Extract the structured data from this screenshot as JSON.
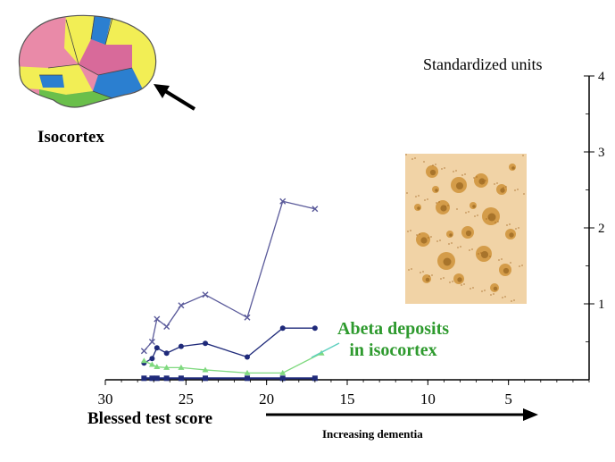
{
  "figure": {
    "region_label": "Isocortex",
    "arrow_caption": "Increasing dementia",
    "annotation": [
      "Abeta deposits",
      "in isocortex"
    ],
    "colors": {
      "annotation": "#2e9a2e",
      "series_upper": "#5a5a9a",
      "series_middle": "#1f2a7a",
      "series_green": "#7fd97f",
      "series_bottom": "#1f2a7a",
      "micrograph_bg": "#f1d3a6",
      "plaque": "#c98a2a"
    },
    "brain_map_icon": "brain-lateral-view-icon",
    "micrograph_icon": "amyloid-plaque-micrograph-icon"
  },
  "chart_data": {
    "type": "line",
    "xlabel": "Blessed test score",
    "ylabel": "Standardized units",
    "x_ticks": [
      30,
      25,
      20,
      15,
      10,
      5
    ],
    "y_ticks": [
      1,
      2,
      3,
      4
    ],
    "xlim": [
      30,
      0
    ],
    "ylim": [
      0,
      4
    ],
    "x_reversed": true,
    "grid": false,
    "series": [
      {
        "marker": "x",
        "color": "#5a5a9a",
        "x": [
          27.6,
          27.1,
          26.8,
          26.2,
          25.3,
          23.8,
          21.2,
          19.0,
          17.0
        ],
        "y": [
          0.38,
          0.5,
          0.8,
          0.7,
          0.98,
          1.12,
          0.82,
          2.35,
          2.25
        ]
      },
      {
        "marker": "circle",
        "color": "#1f2a7a",
        "x": [
          27.6,
          27.1,
          26.8,
          26.2,
          25.3,
          23.8,
          21.2,
          19.0,
          17.0
        ],
        "y": [
          0.22,
          0.28,
          0.42,
          0.35,
          0.44,
          0.48,
          0.3,
          0.68,
          0.68
        ]
      },
      {
        "marker": "triangle",
        "color": "#7fd97f",
        "x": [
          27.6,
          27.1,
          26.8,
          26.2,
          25.3,
          23.8,
          21.2,
          19.0,
          16.6
        ],
        "y": [
          0.25,
          0.2,
          0.17,
          0.16,
          0.16,
          0.13,
          0.09,
          0.09,
          0.35
        ]
      },
      {
        "marker": "square",
        "color": "#1f2a7a",
        "x": [
          27.6,
          27.1,
          26.8,
          26.2,
          25.3,
          23.8,
          21.2,
          19.0,
          17.0
        ],
        "y": [
          0.02,
          0.02,
          0.02,
          0.02,
          0.02,
          0.02,
          0.02,
          0.02,
          0.02
        ]
      }
    ]
  }
}
